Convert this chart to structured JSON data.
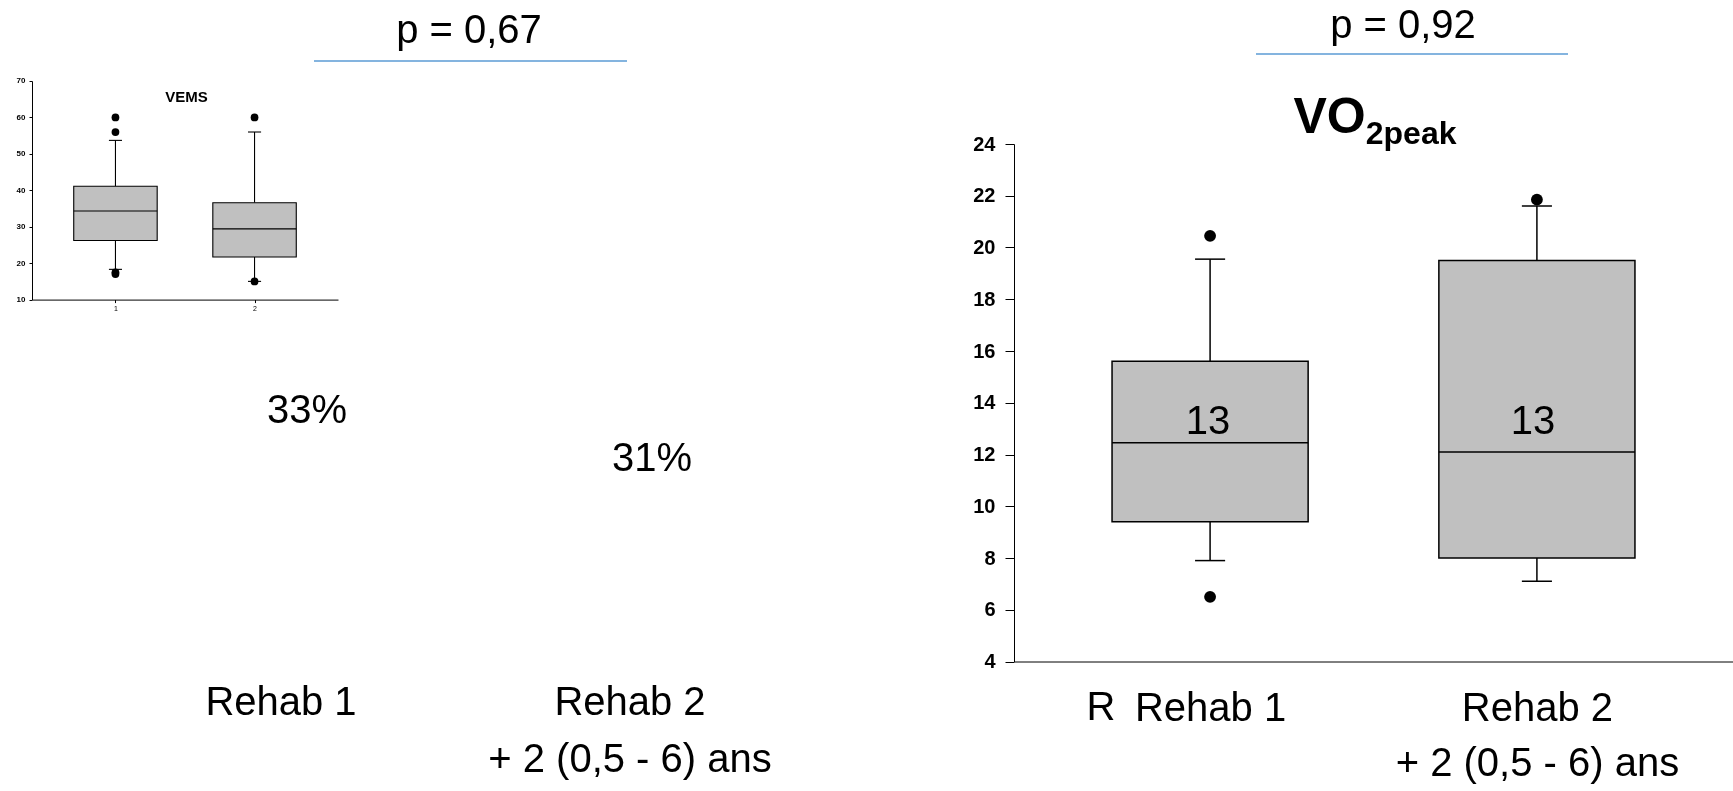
{
  "chart_data": [
    {
      "type": "box",
      "title": "VEMS",
      "categories": [
        "1",
        "2"
      ],
      "series": [
        {
          "color": "#c0c0c0",
          "boxes": [
            {
              "low": 18.3,
              "q1": 26.2,
              "median": 34.3,
              "q3": 41.1,
              "high": 53.7,
              "outliers": [
                60,
                56,
                17.5,
                17
              ]
            },
            {
              "low": 15,
              "q1": 21.7,
              "median": 29.4,
              "q3": 36.6,
              "high": 56,
              "outliers": [
                60,
                15
              ]
            }
          ]
        }
      ],
      "ylim": [
        10,
        70
      ],
      "yticks": [
        10,
        20,
        30,
        40,
        50,
        60,
        70
      ],
      "annotations": [
        "p = 0,67",
        "33%",
        "31%",
        "Rehab 1",
        "Rehab 2 + 2 (0,5 - 6) ans"
      ]
    },
    {
      "type": "box",
      "title": "VO$_{2peak}$",
      "categories": [
        "Rehab 1",
        "Rehab 2 + 2 (0,5 - 6) ans"
      ],
      "series": [
        {
          "color": "#c0c0c0",
          "boxes": [
            {
              "low": 7.9,
              "q1": 9.4,
              "median": 12.45,
              "q3": 15.6,
              "high": 19.55,
              "outliers": [
                20.45,
                6.5
              ]
            },
            {
              "low": 7.1,
              "q1": 8.0,
              "median": 12.1,
              "q3": 19.5,
              "high": 21.6,
              "outliers": [
                21.85
              ]
            }
          ]
        }
      ],
      "ylim": [
        4,
        24
      ],
      "yticks": [
        4,
        6,
        8,
        10,
        12,
        14,
        16,
        18,
        20,
        22,
        24
      ],
      "annotations": [
        "p = 0,92",
        "R",
        "13",
        "13"
      ]
    }
  ]
}
